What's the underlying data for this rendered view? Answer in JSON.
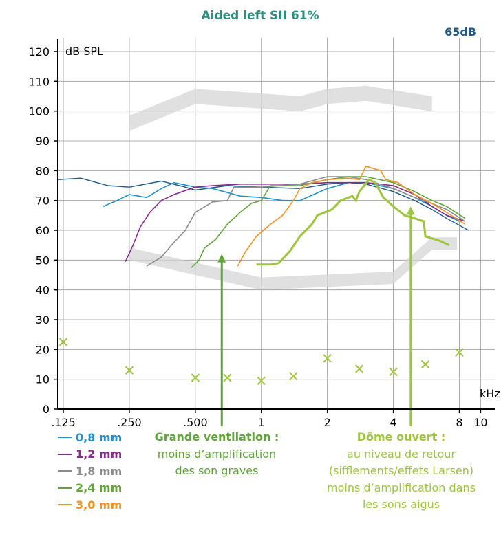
{
  "chart_data": {
    "type": "line",
    "title": "Aided left SII 61%",
    "level_label": "65dB",
    "ylabel": "dB SPL",
    "xlabel": "kHz",
    "ylim": [
      0,
      120
    ],
    "yticks": [
      0,
      10,
      20,
      30,
      40,
      50,
      60,
      70,
      80,
      90,
      100,
      110,
      120
    ],
    "xscale": "log",
    "xlim_khz": [
      0.118,
      11.3
    ],
    "xticks": [
      {
        "value": 0.125,
        "label": ",125"
      },
      {
        "value": 0.25,
        "label": ",250"
      },
      {
        "value": 0.5,
        "label": ",500"
      },
      {
        "value": 1,
        "label": "1"
      },
      {
        "value": 2,
        "label": "2"
      },
      {
        "value": 4,
        "label": "4"
      },
      {
        "value": 8,
        "label": "8"
      },
      {
        "value": 10,
        "label": "10"
      }
    ],
    "grid": true,
    "upper_band": [
      [
        0.25,
        98.5
      ],
      [
        0.5,
        107.5
      ],
      [
        1.5,
        105
      ],
      [
        2,
        107.5
      ],
      [
        3,
        108.5
      ],
      [
        6,
        105
      ]
    ],
    "lower_band": [
      [
        0.25,
        50
      ],
      [
        1,
        40
      ],
      [
        4,
        42
      ],
      [
        6,
        53.5
      ],
      [
        7.8,
        53.5
      ]
    ],
    "reference_curve": {
      "color": "#1f5a8a",
      "points": [
        [
          0.118,
          77
        ],
        [
          0.15,
          77.5
        ],
        [
          0.2,
          75
        ],
        [
          0.25,
          74.5
        ],
        [
          0.35,
          76.5
        ],
        [
          0.45,
          74.5
        ],
        [
          0.5,
          73.5
        ],
        [
          0.7,
          75
        ],
        [
          1,
          74.5
        ],
        [
          1.5,
          74
        ],
        [
          2,
          75.5
        ],
        [
          2.5,
          76
        ],
        [
          3,
          75.5
        ],
        [
          4,
          73
        ],
        [
          5,
          70
        ],
        [
          6,
          67
        ],
        [
          7,
          64
        ],
        [
          8.8,
          60
        ]
      ]
    },
    "series": [
      {
        "name": "0,8 mm",
        "color": "#2090cf",
        "points": [
          [
            0.19,
            68
          ],
          [
            0.22,
            70
          ],
          [
            0.25,
            72
          ],
          [
            0.3,
            71
          ],
          [
            0.35,
            74
          ],
          [
            0.4,
            76
          ],
          [
            0.5,
            74.5
          ],
          [
            0.6,
            74
          ],
          [
            0.8,
            71.5
          ],
          [
            1,
            71
          ],
          [
            1.25,
            70
          ],
          [
            1.5,
            70
          ],
          [
            2,
            74
          ],
          [
            2.5,
            76
          ],
          [
            3,
            76
          ],
          [
            4,
            74
          ],
          [
            5,
            71
          ],
          [
            6,
            68
          ],
          [
            7,
            65
          ],
          [
            8,
            63
          ]
        ]
      },
      {
        "name": "1,2 mm",
        "color": "#8b2a8e",
        "points": [
          [
            0.24,
            49.5
          ],
          [
            0.26,
            55
          ],
          [
            0.28,
            61
          ],
          [
            0.31,
            66
          ],
          [
            0.35,
            70
          ],
          [
            0.4,
            72
          ],
          [
            0.5,
            74.5
          ],
          [
            0.6,
            75
          ],
          [
            0.8,
            75.5
          ],
          [
            1,
            75.5
          ],
          [
            1.5,
            75.5
          ],
          [
            2,
            76
          ],
          [
            3,
            76
          ],
          [
            4,
            75
          ],
          [
            5,
            72
          ],
          [
            6,
            68
          ],
          [
            7,
            65
          ],
          [
            8.5,
            63
          ]
        ]
      },
      {
        "name": "1,8 mm",
        "color": "#8c8c8c",
        "points": [
          [
            0.3,
            48
          ],
          [
            0.35,
            51
          ],
          [
            0.4,
            56
          ],
          [
            0.45,
            60
          ],
          [
            0.5,
            66
          ],
          [
            0.6,
            69.5
          ],
          [
            0.7,
            70
          ],
          [
            0.75,
            74.5
          ],
          [
            1,
            74.5
          ],
          [
            1.5,
            75.5
          ],
          [
            2,
            78
          ],
          [
            2.5,
            78
          ],
          [
            3,
            77
          ],
          [
            4,
            74
          ],
          [
            5,
            71
          ],
          [
            6,
            69
          ],
          [
            7,
            67
          ],
          [
            8.5,
            63
          ]
        ]
      },
      {
        "name": "2,4 mm",
        "color": "#5fa53a",
        "points": [
          [
            0.48,
            47.5
          ],
          [
            0.52,
            50
          ],
          [
            0.55,
            54
          ],
          [
            0.62,
            57
          ],
          [
            0.7,
            62
          ],
          [
            0.8,
            66
          ],
          [
            0.9,
            69
          ],
          [
            1,
            70
          ],
          [
            1.1,
            75
          ],
          [
            1.5,
            75
          ],
          [
            2,
            77
          ],
          [
            2.5,
            78
          ],
          [
            3,
            78
          ],
          [
            4,
            76
          ],
          [
            5,
            73
          ],
          [
            6,
            70
          ],
          [
            7,
            68
          ],
          [
            8.5,
            64
          ]
        ]
      },
      {
        "name": "3,0 mm",
        "color": "#f39220",
        "points": [
          [
            0.78,
            48
          ],
          [
            0.85,
            53
          ],
          [
            0.95,
            58
          ],
          [
            1.1,
            62
          ],
          [
            1.25,
            65
          ],
          [
            1.4,
            70
          ],
          [
            1.5,
            74
          ],
          [
            1.7,
            76
          ],
          [
            2,
            77
          ],
          [
            2.5,
            77.5
          ],
          [
            2.8,
            77
          ],
          [
            3,
            81.5
          ],
          [
            3.5,
            80
          ],
          [
            3.7,
            77
          ],
          [
            4.2,
            76
          ],
          [
            5,
            72
          ],
          [
            6,
            69
          ],
          [
            7,
            66
          ],
          [
            8.5,
            62
          ]
        ]
      }
    ],
    "open_dome_curve": {
      "color": "#9dc63a",
      "points": [
        [
          0.95,
          48.5
        ],
        [
          1.1,
          48.5
        ],
        [
          1.2,
          49
        ],
        [
          1.35,
          53
        ],
        [
          1.5,
          58
        ],
        [
          1.7,
          62
        ],
        [
          1.8,
          65
        ],
        [
          2.1,
          67
        ],
        [
          2.3,
          70
        ],
        [
          2.6,
          71.5
        ],
        [
          2.7,
          70
        ],
        [
          2.8,
          73
        ],
        [
          3.1,
          77
        ],
        [
          3.3,
          76
        ],
        [
          3.6,
          71
        ],
        [
          4,
          68
        ],
        [
          4.5,
          65
        ],
        [
          5,
          64
        ],
        [
          5.5,
          63
        ],
        [
          5.6,
          58
        ],
        [
          6.5,
          56.5
        ],
        [
          7.2,
          55
        ]
      ]
    },
    "markers": {
      "color": "#9dc63a",
      "symbol": "x",
      "points": [
        [
          0.125,
          22.5
        ],
        [
          0.25,
          13
        ],
        [
          0.5,
          10.5
        ],
        [
          0.7,
          10.5
        ],
        [
          1,
          9.5
        ],
        [
          1.4,
          11
        ],
        [
          2,
          17
        ],
        [
          2.8,
          13.5
        ],
        [
          4,
          12.5
        ],
        [
          5.6,
          15
        ],
        [
          8,
          19
        ]
      ]
    },
    "arrows": [
      {
        "color": "#5fa53a",
        "x_khz": 0.66,
        "from_db": -9.5,
        "to_db": 52
      },
      {
        "color": "#9dc63a",
        "x_khz": 4.8,
        "from_db": -9.5,
        "to_db": 68
      }
    ],
    "legend": [
      {
        "label": "0,8 mm",
        "color": "#2090cf"
      },
      {
        "label": "1,2 mm",
        "color": "#8b2a8e"
      },
      {
        "label": "1,8 mm",
        "color": "#8c8c8c"
      },
      {
        "label": "2,4 mm",
        "color": "#5fa53a"
      },
      {
        "label": "3,0 mm",
        "color": "#f39220"
      }
    ]
  },
  "annotations": {
    "left": {
      "title": "Grande ventilation :",
      "lines": [
        "moins d’amplification",
        "des son graves"
      ],
      "color": "#5fa53a"
    },
    "right": {
      "title": "Dôme ouvert :",
      "lines": [
        "au niveau de retour",
        "(sifflements/effets Larsen)",
        "moins d’amplification dans",
        "les sons aigus"
      ],
      "color": "#9dc63a"
    }
  },
  "colors": {
    "title": "#2a8f7d",
    "level": "#1f5a8a",
    "grid": "#999999",
    "axis": "#000000"
  }
}
